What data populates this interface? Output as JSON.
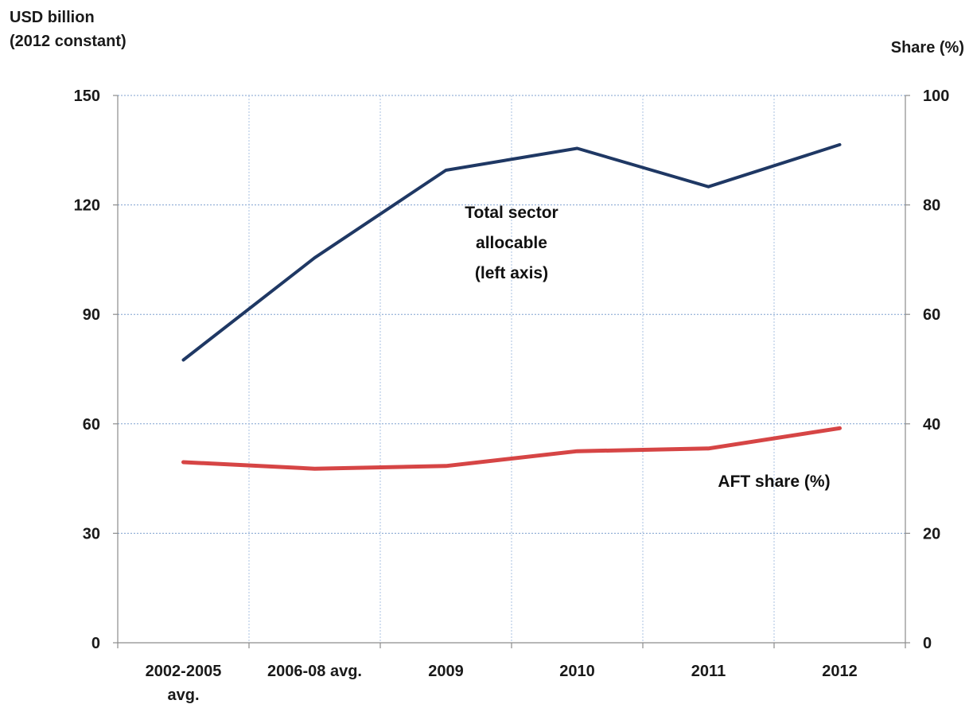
{
  "chart_data": {
    "type": "line",
    "categories": [
      "2002-2005 avg.",
      "2006-08 avg.",
      "2009",
      "2010",
      "2011",
      "2012"
    ],
    "series": [
      {
        "name": "Total sector allocable (left axis)",
        "axis": "left",
        "color": "#1f3864",
        "values": [
          77.5,
          105.5,
          129.5,
          135.5,
          125,
          136.5
        ]
      },
      {
        "name": "AFT share (%)",
        "axis": "right",
        "color": "#d64545",
        "values": [
          33,
          31.8,
          32.3,
          35,
          35.5,
          39.2
        ]
      }
    ],
    "ylabel_left": [
      "USD billion",
      "(2012 constant)"
    ],
    "ylabel_right": "Share  (%)",
    "ylim_left": [
      0,
      150
    ],
    "ylim_right": [
      0,
      100
    ],
    "yticks_left": [
      0,
      30,
      60,
      90,
      120,
      150
    ],
    "yticks_right": [
      0,
      20,
      40,
      60,
      80,
      100
    ],
    "annotations": [
      {
        "series": 0,
        "lines": [
          "Total sector",
          "allocable",
          "(left axis)"
        ]
      },
      {
        "series": 1,
        "lines": [
          "AFT share (%)"
        ]
      }
    ],
    "grid": true,
    "legend": "none"
  }
}
